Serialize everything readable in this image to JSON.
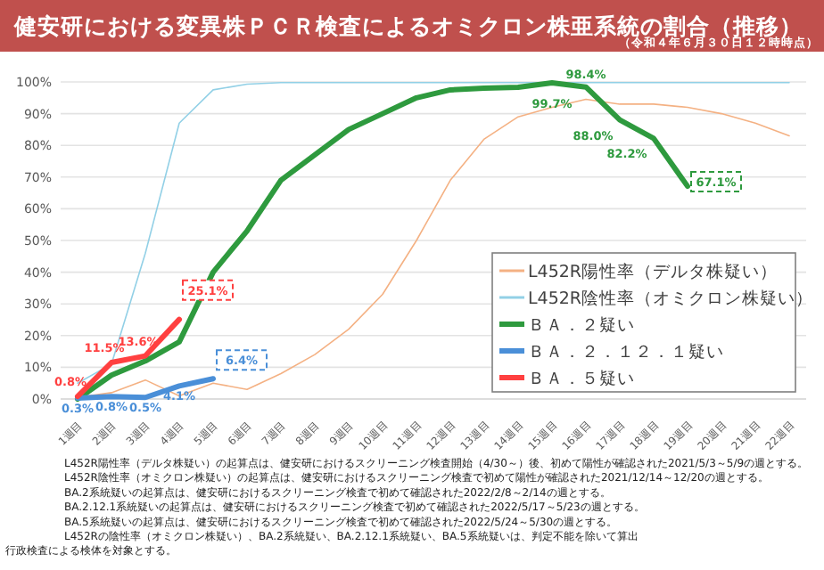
{
  "chart_data": {
    "type": "line",
    "title": "健安研における変異株ＰＣＲ検査によるオミクロン株亜系統の割合（推移）",
    "subtitle": "（令和４年６月３０日１２時時点）",
    "categories": [
      "1週目",
      "2週目",
      "3週目",
      "4週目",
      "5週目",
      "6週目",
      "7週目",
      "8週目",
      "9週目",
      "10週目",
      "11週目",
      "12週目",
      "13週目",
      "14週目",
      "15週目",
      "16週目",
      "17週目",
      "18週目",
      "19週目",
      "20週目",
      "21週目",
      "22週目"
    ],
    "series": [
      {
        "name": "L452R陽性率（デルタ株疑い）",
        "color": "#f4b183",
        "values": [
          0.5,
          2,
          6,
          1,
          5,
          3,
          8,
          14,
          22,
          33,
          50,
          69,
          82,
          89,
          92,
          94.5,
          93,
          93,
          92,
          90,
          87,
          83
        ]
      },
      {
        "name": "L452R陰性率（オミクロン株疑い）",
        "color": "#92d0e6",
        "values": [
          5,
          11,
          46,
          87,
          97.5,
          99.3,
          99.8,
          99.8,
          99.8,
          99.8,
          99.8,
          99.8,
          99.8,
          99.8,
          99.8,
          99.8,
          99.8,
          99.8,
          99.8,
          99.8,
          99.8,
          99.8
        ]
      },
      {
        "name": "ＢＡ．２疑い",
        "color": "#2e9a3e",
        "values": [
          0,
          7.5,
          12,
          18,
          40,
          53,
          69,
          77,
          85,
          90,
          95,
          97.5,
          98,
          98.3,
          99.7,
          98.4,
          88.0,
          82.2,
          67.1,
          null,
          null,
          null
        ],
        "value_labels": [
          null,
          null,
          null,
          null,
          null,
          null,
          null,
          null,
          null,
          null,
          null,
          null,
          null,
          null,
          "99.7%",
          "98.4%",
          "88.0%",
          "82.2%",
          "67.1%",
          null,
          null,
          null
        ]
      },
      {
        "name": "ＢＡ．２．１２．１疑い",
        "color": "#4a8fd8",
        "values": [
          0.3,
          0.8,
          0.5,
          4.1,
          6.4,
          null,
          null,
          null,
          null,
          null,
          null,
          null,
          null,
          null,
          null,
          null,
          null,
          null,
          null,
          null,
          null,
          null
        ],
        "value_labels": [
          "0.3%",
          "0.8%",
          "0.5%",
          "4.1%",
          "6.4%",
          null,
          null,
          null,
          null,
          null,
          null,
          null,
          null,
          null,
          null,
          null,
          null,
          null,
          null,
          null,
          null,
          null
        ]
      },
      {
        "name": "ＢＡ．５疑い",
        "color": "#ff4040",
        "values": [
          0.8,
          11.5,
          13.6,
          25.1,
          null,
          null,
          null,
          null,
          null,
          null,
          null,
          null,
          null,
          null,
          null,
          null,
          null,
          null,
          null,
          null,
          null,
          null
        ],
        "value_labels": [
          "0.8%",
          "11.5%",
          "13.6%",
          "25.1%",
          null,
          null,
          null,
          null,
          null,
          null,
          null,
          null,
          null,
          null,
          null,
          null,
          null,
          null,
          null,
          null,
          null,
          null
        ]
      }
    ],
    "ylim": [
      0,
      100
    ],
    "yticks": [
      {
        "value": 0,
        "label": "0%"
      },
      {
        "value": 10,
        "label": "10%"
      },
      {
        "value": 20,
        "label": "20%"
      },
      {
        "value": 30,
        "label": "30%"
      },
      {
        "value": 40,
        "label": "40%"
      },
      {
        "value": 50,
        "label": "50%"
      },
      {
        "value": 60,
        "label": "60%"
      },
      {
        "value": 70,
        "label": "70%"
      },
      {
        "value": 80,
        "label": "80%"
      },
      {
        "value": 90,
        "label": "90%"
      },
      {
        "value": 100,
        "label": "100%"
      }
    ],
    "grid": "y",
    "legend": "bottom right",
    "marker": "none",
    "line_style": "solid",
    "annotations": [
      "L452R陽性率（デルタ株疑い）の起算点は、健安研におけるスクリーニング検査開始（4/30～）後、初めて陽性が確認された2021/5/3～5/9の週とする。",
      "L452R陰性率（オミクロン株疑い）の起算点は、健安研におけるスクリーニング検査で初めて陽性が確認された2021/12/14～12/20の週とする。",
      "BA.2系統疑いの起算点は、健安研におけるスクリーニング検査で初めて確認された2022/2/8～2/14の週とする。",
      "BA.2.12.1系統疑いの起算点は、健安研におけるスクリーニング検査で初めて確認された2022/5/17～5/23の週とする。",
      "BA.5系統疑いの起算点は、健安研におけるスクリーニング検査で初めて確認された2022/5/24～5/30の週とする。",
      "L452Rの陰性率（オミクロン株疑い）、BA.2系統疑い、BA.2.12.1系統疑い、BA.5系統疑いは、判定不能を除いて算出",
      "行政検査による検体を対象とする。"
    ]
  }
}
